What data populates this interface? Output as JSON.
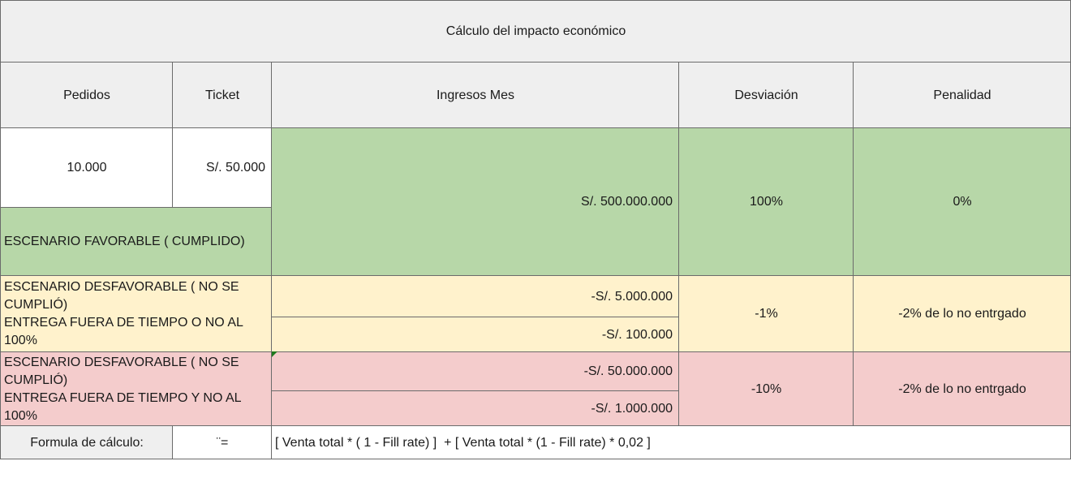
{
  "title": "Cálculo del impacto económico",
  "headers": {
    "pedidos": "Pedidos",
    "ticket": "Ticket",
    "ingresos": "Ingresos Mes",
    "desviacion": "Desviación",
    "penalidad": "Penalidad"
  },
  "favorable": {
    "pedidos": "10.000",
    "ticket": "S/. 50.000",
    "label": "ESCENARIO FAVORABLE ( CUMPLIDO)",
    "ingresos": "S/. 500.000.000",
    "desviacion": "100%",
    "penalidad": "0%"
  },
  "desfavorable_1": {
    "label_line1": "ESCENARIO DESFAVORABLE ( NO SE CUMPLIÓ)",
    "label_line2": "ENTREGA FUERA DE TIEMPO O NO AL 100%",
    "ingresos_1": "-S/. 5.000.000",
    "ingresos_2": "-S/. 100.000",
    "desviacion": "-1%",
    "penalidad": "-2% de lo no entrgado"
  },
  "desfavorable_2": {
    "label_line1": "ESCENARIO DESFAVORABLE ( NO SE CUMPLIÓ)",
    "label_line2": "ENTREGA FUERA DE TIEMPO Y NO AL 100%",
    "ingresos_1": "-S/. 50.000.000",
    "ingresos_2": "-S/. 1.000.000",
    "desviacion": "-10%",
    "penalidad": "-2% de lo no entrgado"
  },
  "formula": {
    "label": "Formula de cálculo:",
    "symbol": "¨=",
    "expression": "[ Venta total * ( 1 - Fill rate) ]  + [ Venta total * (1 - Fill rate) * 0,02 ]"
  },
  "colors": {
    "header_gray": "#efefef",
    "favorable_green": "#b7d7a8",
    "unfavorable_yellow": "#fff2cc",
    "unfavorable_pink": "#f4cccc"
  }
}
